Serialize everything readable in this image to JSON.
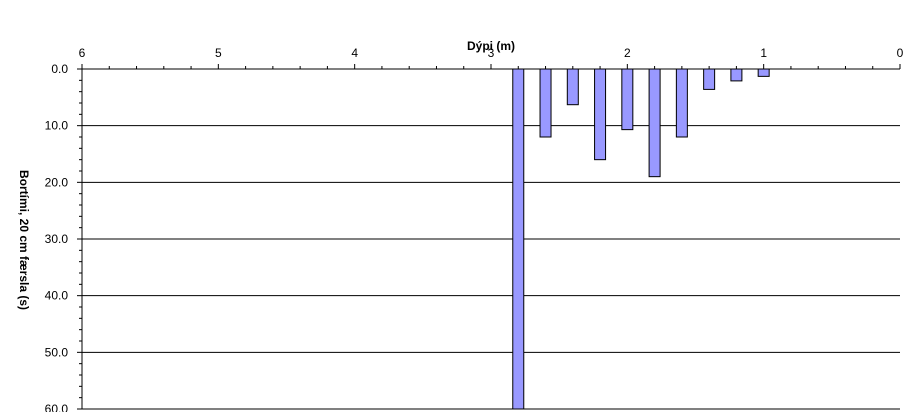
{
  "chart_data": {
    "type": "bar",
    "title": "",
    "xlabel": "Dýpi (m)",
    "ylabel": "Bortími,  20 cm færsla (s)",
    "x_axis_position": "top",
    "x_reversed": true,
    "y_inverted": true,
    "xlim": [
      0,
      6
    ],
    "ylim": [
      0,
      60
    ],
    "x_tick_values": [
      6,
      5,
      4,
      3,
      2,
      1,
      0
    ],
    "x_tick_labels": [
      "6",
      "5",
      "4",
      "3",
      "2",
      "1",
      "0"
    ],
    "y_tick_values": [
      0,
      10,
      20,
      30,
      40,
      50,
      60
    ],
    "y_tick_labels": [
      "0.0",
      "10.0",
      "20.0",
      "30.0",
      "40.0",
      "50.0",
      "60.0"
    ],
    "grid": "horizontal",
    "legend": "none",
    "bar_color": "#9999ff",
    "bar_edge_color": "#000000",
    "x": [
      2.8,
      2.6,
      2.4,
      2.2,
      2.0,
      1.8,
      1.6,
      1.4,
      1.2,
      1.0
    ],
    "values": [
      60,
      12,
      6.3,
      16,
      10.7,
      19,
      12,
      3.6,
      2.1,
      1.3
    ]
  }
}
